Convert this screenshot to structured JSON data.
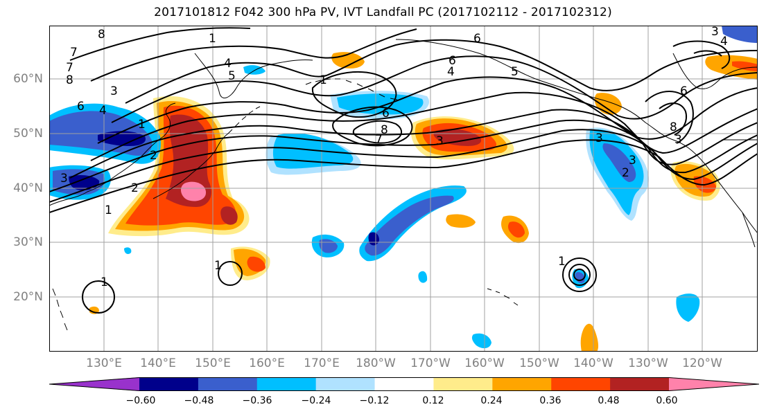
{
  "title": "2017101812 F042 300 hPa PV, IVT Landfall PC (2017102112 - 2017102312)",
  "map": {
    "lon_range": [
      120,
      -110
    ],
    "lat_range": [
      10,
      70
    ],
    "lat_labels": [
      "60°N",
      "50°N",
      "40°N",
      "30°N",
      "20°N"
    ],
    "lon_labels": [
      "130°E",
      "140°E",
      "150°E",
      "160°E",
      "170°E",
      "180°W",
      "170°W",
      "160°W",
      "150°W",
      "140°W",
      "130°W",
      "120°W"
    ],
    "contour_labels": [
      "8",
      "7",
      "7",
      "8",
      "6",
      "4",
      "3",
      "1",
      "2",
      "2",
      "1",
      "3",
      "4",
      "5",
      "1",
      "6",
      "8",
      "7",
      "3",
      "6",
      "4",
      "5",
      "6",
      "3",
      "3",
      "8",
      "3",
      "2",
      "1",
      "1",
      "1",
      "1",
      "3",
      "4",
      "6"
    ]
  },
  "colorbar": {
    "levels": [
      "−0.60",
      "−0.48",
      "−0.36",
      "−0.24",
      "−0.12",
      "0.12",
      "0.24",
      "0.36",
      "0.48",
      "0.60"
    ],
    "colors": [
      "#9932cc",
      "#00008b",
      "#3a5fcd",
      "#00bfff",
      "#b0e2ff",
      "#ffffff",
      "#ffec8b",
      "#ffa500",
      "#ff4500",
      "#b22222",
      "#ff82ab"
    ]
  }
}
